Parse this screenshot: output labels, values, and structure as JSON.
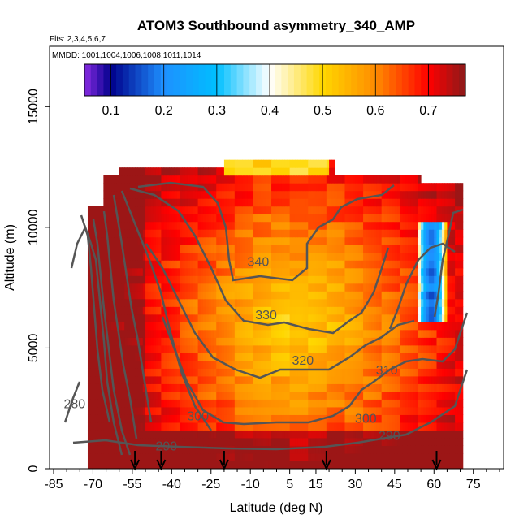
{
  "chart_data": {
    "type": "heatmap",
    "title": "ATOM3 Southbound asymmetry_340_AMP",
    "flights_label": "Flts: 2,3,4,5,6,7",
    "mmdd_label": "MMDD: 1001,1004,1006,1008,1011,1014",
    "xlabel": "Latitude (deg N)",
    "ylabel": "Altitude (m)",
    "xlim": [
      -85,
      85
    ],
    "ylim": [
      0,
      17500
    ],
    "x_ticks": [
      -85,
      -70,
      -55,
      -40,
      -25,
      -10,
      5,
      15,
      30,
      45,
      60,
      75
    ],
    "x_tick_labels": [
      "-85",
      "-70",
      "-55",
      "-40",
      "-25",
      "-10",
      "5",
      "15",
      "30",
      "45",
      "60",
      "75"
    ],
    "y_ticks": [
      0,
      5000,
      10000,
      15000
    ],
    "y_tick_labels": [
      "0",
      "5000",
      "10000",
      "15000"
    ],
    "colorbar": {
      "ticks": [
        0.1,
        0.2,
        0.3,
        0.4,
        0.5,
        0.6,
        0.7
      ],
      "tick_labels": [
        "0.1",
        "0.2",
        "0.3",
        "0.4",
        "0.5",
        "0.6",
        "0.7"
      ],
      "range": [
        0.05,
        0.77
      ],
      "colors": [
        "#8a2be2",
        "#00008b",
        "#1e90ff",
        "#00bfff",
        "#ffffff",
        "#ffd700",
        "#ffa500",
        "#ff0000",
        "#8b1a1a"
      ]
    },
    "contours": [
      {
        "label": "280",
        "label_at": [
          -77,
          2500
        ]
      },
      {
        "label": "290",
        "label_at": [
          -42,
          750
        ]
      },
      {
        "label": "300",
        "label_at": [
          -30,
          2000
        ]
      },
      {
        "label": "300",
        "label_at": [
          34,
          1900
        ]
      },
      {
        "label": "290",
        "label_at": [
          43,
          1200
        ]
      },
      {
        "label": "310",
        "label_at": [
          42,
          3900
        ]
      },
      {
        "label": "320",
        "label_at": [
          10,
          4300
        ]
      },
      {
        "label": "330",
        "label_at": [
          -4,
          6200
        ]
      },
      {
        "label": "340",
        "label_at": [
          -7,
          8400
        ]
      }
    ],
    "arrows_latitude": [
      -54,
      -44,
      -20,
      19,
      61
    ],
    "field": {
      "lat_range": [
        -72,
        71
      ],
      "alt_range": [
        0,
        13000
      ],
      "center_lat": 8,
      "center_alt": 6000,
      "blue_core_lat": 59,
      "blue_core_alt": [
        6000,
        10200
      ]
    }
  }
}
